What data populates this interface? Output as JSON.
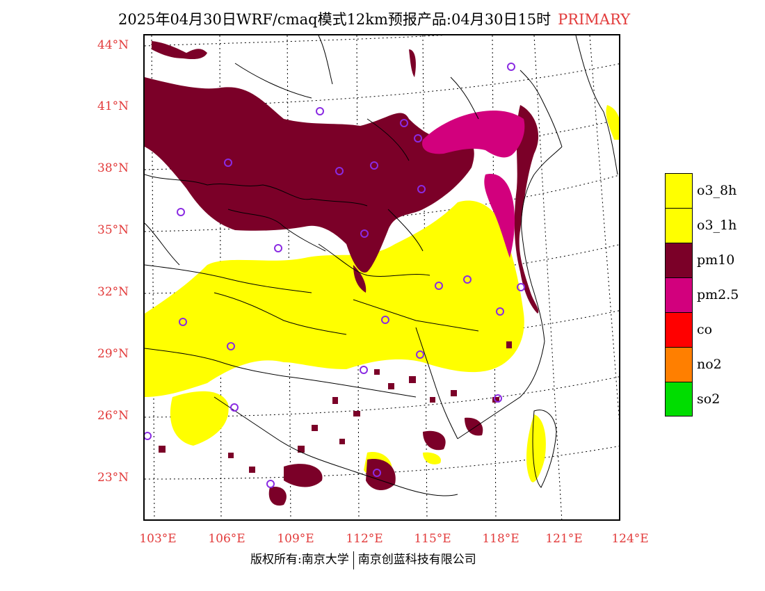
{
  "title": {
    "main": "2025年04月30日WRF/cmaq模式12km预报产品:04月30日15时",
    "tag": "PRIMARY"
  },
  "latitude_labels": [
    "44°N",
    "41°N",
    "38°N",
    "35°N",
    "32°N",
    "29°N",
    "26°N",
    "23°N"
  ],
  "longitude_labels": [
    "103°E",
    "106°E",
    "109°E",
    "112°E",
    "115°E",
    "118°E",
    "121°E",
    "124°E"
  ],
  "legend": [
    {
      "label": "o3_8h",
      "color": "#ffff00"
    },
    {
      "label": "o3_1h",
      "color": "#ffff00"
    },
    {
      "label": "pm10",
      "color": "#7b0028"
    },
    {
      "label": "pm2.5",
      "color": "#d2007d"
    },
    {
      "label": "co",
      "color": "#ff0000"
    },
    {
      "label": "no2",
      "color": "#ff7f00"
    },
    {
      "label": "so2",
      "color": "#00dd00"
    }
  ],
  "copyright": {
    "left": "版权所有:南京大学",
    "right": "南京创蓝科技有限公司"
  },
  "colors": {
    "axis_label": "#e23a3a",
    "station_marker": "#8a2be2"
  }
}
